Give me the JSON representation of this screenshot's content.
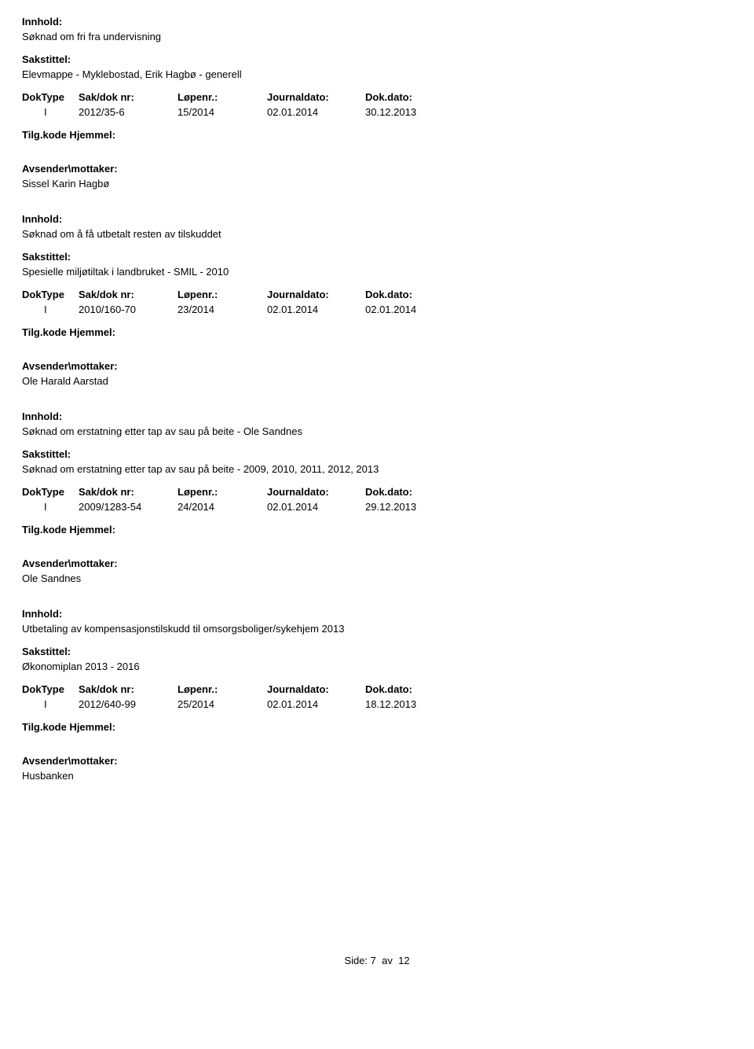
{
  "labels": {
    "innhold": "Innhold:",
    "sakstittel": "Sakstittel:",
    "doktype": "DokType",
    "sakdoknr": "Sak/dok nr:",
    "lopenr": "Løpenr.:",
    "journaldato": "Journaldato:",
    "dokdato": "Dok.dato:",
    "tilgkode": "Tilg.kode Hjemmel:",
    "avsender": "Avsender\\mottaker:"
  },
  "entries": [
    {
      "innhold": "Søknad om fri fra undervisning",
      "sakstittel": "Elevmappe - Myklebostad, Erik Hagbø - generell",
      "doktype": "I",
      "sakdok": "2012/35-6",
      "lopenr": "15/2014",
      "journal": "02.01.2014",
      "dokdato": "30.12.2013",
      "avsender": "Sissel Karin Hagbø"
    },
    {
      "innhold": "Søknad om å få utbetalt resten av tilskuddet",
      "sakstittel": "Spesielle miljøtiltak i landbruket - SMIL - 2010",
      "doktype": "I",
      "sakdok": "2010/160-70",
      "lopenr": "23/2014",
      "journal": "02.01.2014",
      "dokdato": "02.01.2014",
      "avsender": "Ole Harald Aarstad"
    },
    {
      "innhold": "Søknad om erstatning etter tap av sau på beite - Ole Sandnes",
      "sakstittel": "Søknad om erstatning etter tap av sau på beite - 2009, 2010, 2011, 2012, 2013",
      "doktype": "I",
      "sakdok": "2009/1283-54",
      "lopenr": "24/2014",
      "journal": "02.01.2014",
      "dokdato": "29.12.2013",
      "avsender": "Ole Sandnes"
    },
    {
      "innhold": "Utbetaling av kompensasjonstilskudd til omsorgsboliger/sykehjem 2013",
      "sakstittel": "Økonomiplan 2013 - 2016",
      "doktype": "I",
      "sakdok": "2012/640-99",
      "lopenr": "25/2014",
      "journal": "02.01.2014",
      "dokdato": "18.12.2013",
      "avsender": "Husbanken"
    }
  ],
  "footer": {
    "side_label": "Side:",
    "page": "7",
    "av": "av",
    "total": "12"
  }
}
